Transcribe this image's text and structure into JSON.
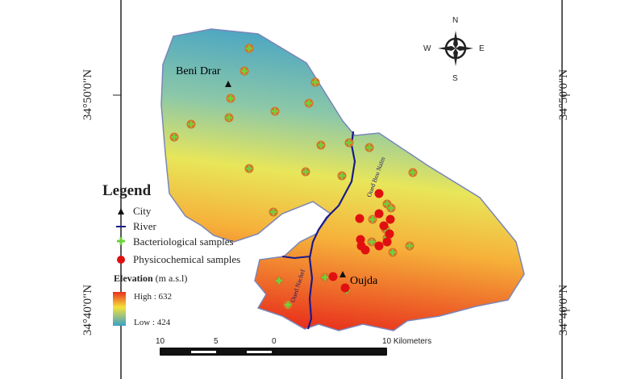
{
  "map": {
    "latitude_labels": [
      "34°50'0\"N",
      "34°40'0\"N"
    ],
    "cities": [
      {
        "name": "Beni Drar"
      },
      {
        "name": "Oujda"
      }
    ],
    "rivers": [
      "Oued Bou Naïm",
      "Oued Nachef"
    ],
    "compass": {
      "n": "N",
      "s": "S",
      "e": "E",
      "w": "W"
    }
  },
  "legend": {
    "title": "Legend",
    "items": [
      "City",
      "River",
      "Bacteriological samples",
      "Physicochemical samples"
    ],
    "elevation_label": "Elevation",
    "elevation_unit": "(m a.s.l)",
    "high": "High : 632",
    "low": "Low : 424"
  },
  "scale": {
    "ticks": [
      "10",
      "5",
      "0"
    ],
    "end": "10 Kilometers"
  },
  "colors": {
    "high": "#e8301c",
    "mid": "#f2e23a",
    "low": "#3aa0c8",
    "river": "#1a1a8a",
    "bact": "#6fd23a",
    "phys": "#e01010"
  }
}
